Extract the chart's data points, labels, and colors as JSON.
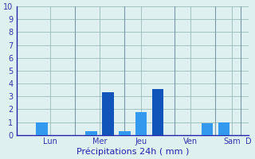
{
  "values": [
    0,
    1.0,
    0,
    0,
    0.3,
    3.3,
    0.3,
    1.8,
    3.6,
    0,
    0,
    0.9,
    1.0,
    0
  ],
  "bar_color_light": "#3399ee",
  "bar_color_dark": "#1155bb",
  "background_color": "#dff0f0",
  "grid_color": "#99bbbb",
  "axis_color": "#2222aa",
  "xlabel": "Précipitations 24h ( mm )",
  "xlabel_color": "#2222aa",
  "ylim": [
    0,
    10
  ],
  "yticks": [
    0,
    1,
    2,
    3,
    4,
    5,
    6,
    7,
    8,
    9,
    10
  ],
  "tick_label_color": "#3333aa",
  "x_day_labels": [
    "Lun",
    "Mer",
    "Jeu",
    "Ven",
    "Sam",
    "D"
  ],
  "x_day_positions": [
    1.5,
    4.5,
    7.0,
    10.0,
    12.5,
    13.5
  ],
  "vline_positions": [
    3.0,
    6.0,
    9.0,
    11.5,
    13.0
  ],
  "dark_bar_indices": [
    5,
    8
  ],
  "num_bars": 14
}
